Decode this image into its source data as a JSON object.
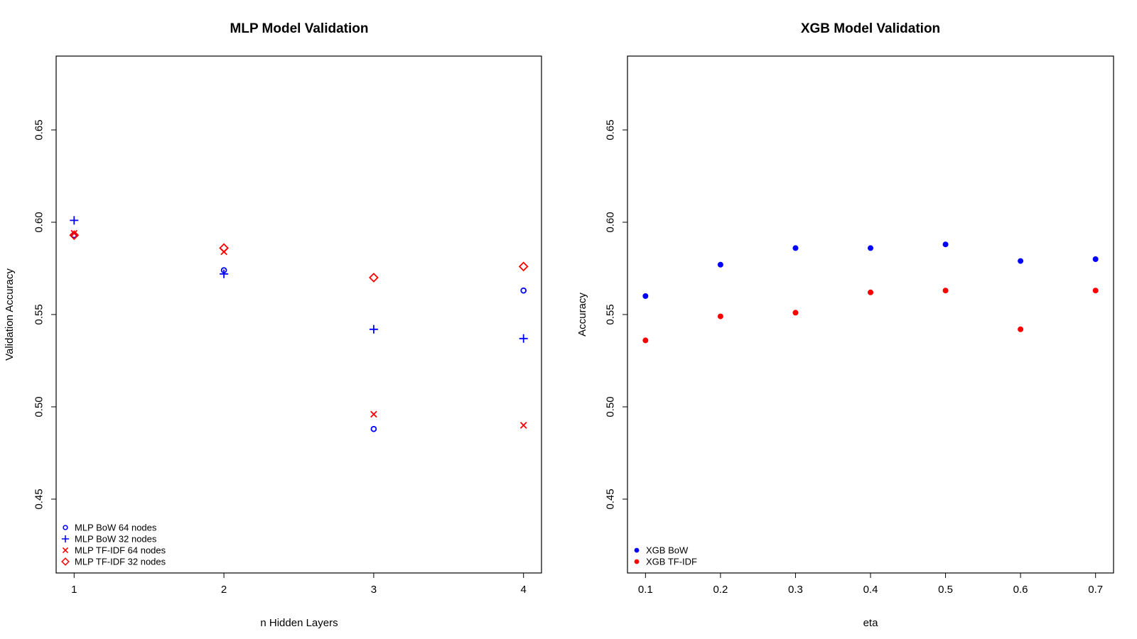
{
  "colors": {
    "blue": "#0000ff",
    "red": "#ff0000",
    "frame": "#000000"
  },
  "chart_data": [
    {
      "type": "scatter",
      "title": "MLP Model Validation",
      "xlabel": "n Hidden Layers",
      "ylabel": "Validation Accuracy",
      "xlim": [
        0.88,
        4.12
      ],
      "ylim": [
        0.41,
        0.69
      ],
      "xticks": [
        1,
        2,
        3,
        4
      ],
      "xtick_labels": [
        "1",
        "2",
        "3",
        "4"
      ],
      "yticks": [
        0.45,
        0.5,
        0.55,
        0.6,
        0.65
      ],
      "ytick_labels": [
        "0.45",
        "0.50",
        "0.55",
        "0.60",
        "0.65"
      ],
      "grid": false,
      "legend_position": "bottom-left",
      "series": [
        {
          "name": "MLP BoW 64 nodes",
          "color": "#0000ff",
          "marker": "circle",
          "x": [
            1,
            2,
            3,
            4
          ],
          "y": [
            0.593,
            0.574,
            0.488,
            0.563
          ]
        },
        {
          "name": "MLP BoW 32 nodes",
          "color": "#0000ff",
          "marker": "plus",
          "x": [
            1,
            2,
            3,
            4
          ],
          "y": [
            0.601,
            0.572,
            0.542,
            0.537
          ]
        },
        {
          "name": "MLP TF-IDF 64 nodes",
          "color": "#ff0000",
          "marker": "cross",
          "x": [
            1,
            2,
            3,
            4
          ],
          "y": [
            0.594,
            0.584,
            0.496,
            0.49
          ]
        },
        {
          "name": "MLP TF-IDF 32 nodes",
          "color": "#ff0000",
          "marker": "diamond",
          "x": [
            1,
            2,
            3,
            4
          ],
          "y": [
            0.593,
            0.586,
            0.57,
            0.576
          ]
        }
      ]
    },
    {
      "type": "scatter",
      "title": "XGB Model Validation",
      "xlabel": "eta",
      "ylabel": "Accuracy",
      "xlim": [
        0.076,
        0.724
      ],
      "ylim": [
        0.41,
        0.69
      ],
      "xticks": [
        0.1,
        0.2,
        0.3,
        0.4,
        0.5,
        0.6,
        0.7
      ],
      "xtick_labels": [
        "0.1",
        "0.2",
        "0.3",
        "0.4",
        "0.5",
        "0.6",
        "0.7"
      ],
      "yticks": [
        0.45,
        0.5,
        0.55,
        0.6,
        0.65
      ],
      "ytick_labels": [
        "0.45",
        "0.50",
        "0.55",
        "0.60",
        "0.65"
      ],
      "grid": false,
      "legend_position": "bottom-left",
      "series": [
        {
          "name": "XGB BoW",
          "color": "#0000ff",
          "marker": "dot",
          "x": [
            0.1,
            0.2,
            0.3,
            0.4,
            0.5,
            0.6,
            0.7
          ],
          "y": [
            0.56,
            0.577,
            0.586,
            0.586,
            0.588,
            0.579,
            0.58
          ]
        },
        {
          "name": "XGB TF-IDF",
          "color": "#ff0000",
          "marker": "dot",
          "x": [
            0.1,
            0.2,
            0.3,
            0.4,
            0.5,
            0.6,
            0.7
          ],
          "y": [
            0.536,
            0.549,
            0.551,
            0.562,
            0.563,
            0.542,
            0.563
          ]
        }
      ]
    }
  ]
}
